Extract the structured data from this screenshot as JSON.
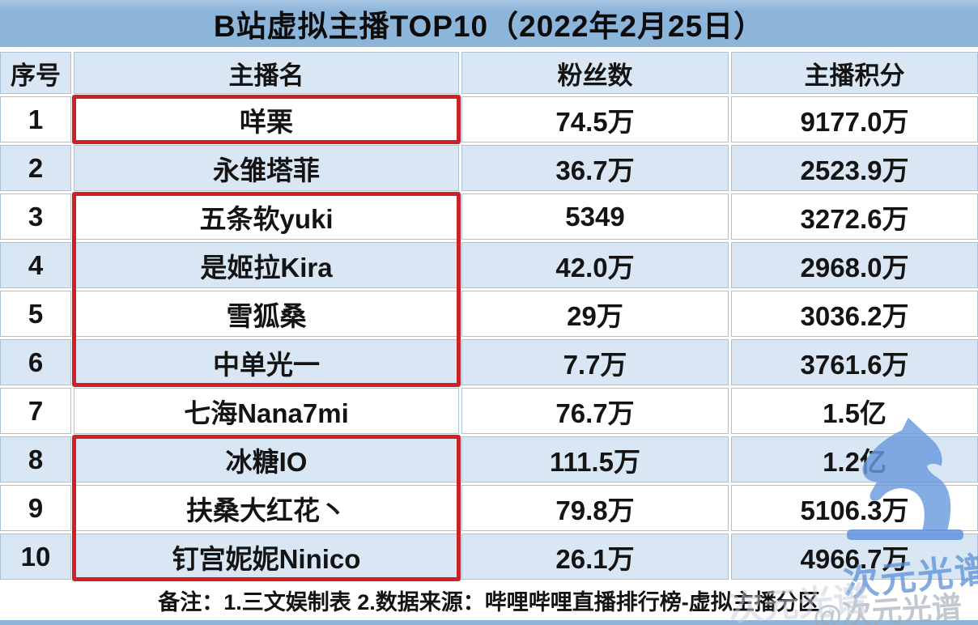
{
  "title": "B站虚拟主播TOP10（2022年2月25日）",
  "table": {
    "headers": [
      "序号",
      "主播名",
      "粉丝数",
      "主播积分"
    ],
    "rows": [
      {
        "rank": "1",
        "name": "咩栗",
        "fans": "74.5万",
        "score": "9177.0万"
      },
      {
        "rank": "2",
        "name": "永雏塔菲",
        "fans": "36.7万",
        "score": "2523.9万"
      },
      {
        "rank": "3",
        "name": "五条软yuki",
        "fans": "5349",
        "score": "3272.6万"
      },
      {
        "rank": "4",
        "name": "是姬拉Kira",
        "fans": "42.0万",
        "score": "2968.0万"
      },
      {
        "rank": "5",
        "name": "雪狐桑",
        "fans": "29万",
        "score": "3036.2万"
      },
      {
        "rank": "6",
        "name": "中单光一",
        "fans": "7.7万",
        "score": "3761.6万"
      },
      {
        "rank": "7",
        "name": "七海Nana7mi",
        "fans": "76.7万",
        "score": "1.5亿"
      },
      {
        "rank": "8",
        "name": "冰糖IO",
        "fans": "111.5万",
        "score": "1.2亿"
      },
      {
        "rank": "9",
        "name": "扶桑大红花丶",
        "fans": "79.8万",
        "score": "5106.3万"
      },
      {
        "rank": "10",
        "name": "钉宫妮妮Ninico",
        "fans": "26.1万",
        "score": "4966.7万"
      }
    ],
    "highlight_groups": [
      [
        1,
        1
      ],
      [
        3,
        6
      ],
      [
        8,
        10
      ]
    ]
  },
  "footer_note": "备注：1.三文娱制表 2.数据来源：哔哩哔哩直播排行榜-虚拟主播分区",
  "watermark": {
    "brand_text": "次元光谱",
    "handle_text": "@次元光谱",
    "ghost_text": "次元光谱",
    "logo": "knight-chess-piece-icon"
  },
  "colors": {
    "title_bar_blue": "#8db5da",
    "row_alt_blue": "#d9e6f3",
    "cell_border": "#a9c2da",
    "highlight_red": "#cb2127",
    "watermark_blue": "#6b9ade",
    "text": "#141414"
  },
  "chart_data": {
    "type": "table",
    "title": "B站虚拟主播TOP10（2022年2月25日）",
    "columns": [
      "序号",
      "主播名",
      "粉丝数",
      "主播积分"
    ],
    "rows": [
      [
        "1",
        "咩栗",
        "74.5万",
        "9177.0万"
      ],
      [
        "2",
        "永雏塔菲",
        "36.7万",
        "2523.9万"
      ],
      [
        "3",
        "五条软yuki",
        "5349",
        "3272.6万"
      ],
      [
        "4",
        "是姬拉Kira",
        "42.0万",
        "2968.0万"
      ],
      [
        "5",
        "雪狐桑",
        "29万",
        "3036.2万"
      ],
      [
        "6",
        "中单光一",
        "7.7万",
        "3761.6万"
      ],
      [
        "7",
        "七海Nana7mi",
        "76.7万",
        "1.5亿"
      ],
      [
        "8",
        "冰糖IO",
        "111.5万",
        "1.2亿"
      ],
      [
        "9",
        "扶桑大红花丶",
        "79.8万",
        "5106.3万"
      ],
      [
        "10",
        "钉宫妮妮Ninico",
        "26.1万",
        "4966.7万"
      ]
    ],
    "highlighted_rank_groups": [
      [
        1,
        1
      ],
      [
        3,
        6
      ],
      [
        8,
        10
      ]
    ],
    "footnote": "备注：1.三文娱制表 2.数据来源：哔哩哔哩直播排行榜-虚拟主播分区"
  }
}
